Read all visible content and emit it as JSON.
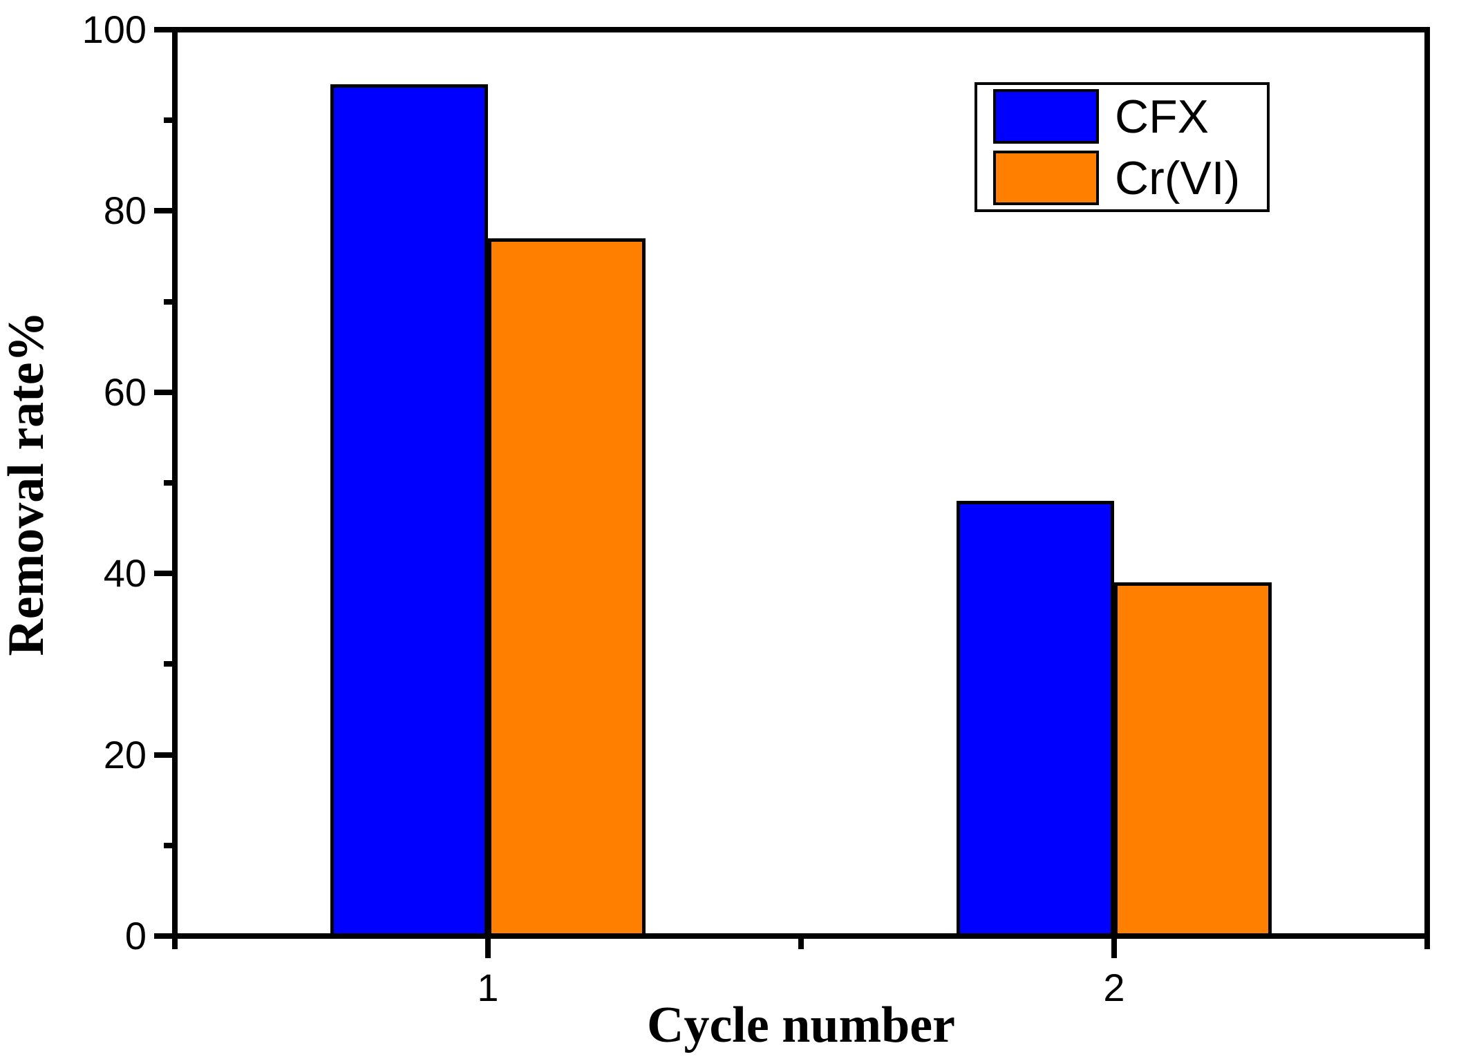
{
  "figure": {
    "background": "#FFFFFF",
    "axis_color": "#000000"
  },
  "chart_data": {
    "type": "bar",
    "categories": [
      "1",
      "2"
    ],
    "series": [
      {
        "name": "CFX",
        "color": "#0000FF",
        "values": [
          94,
          48
        ]
      },
      {
        "name": "Cr(VI)",
        "color": "#FF8000",
        "values": [
          77,
          39
        ]
      }
    ],
    "title": "",
    "xlabel": "Cycle number",
    "ylabel": "Removal rate%",
    "ylim": [
      0,
      100
    ],
    "y_major_ticks": [
      0,
      20,
      40,
      60,
      80,
      100
    ],
    "y_minor_ticks": [
      10,
      30,
      50,
      70,
      90
    ],
    "bar_edge_color": "#000000",
    "legend_position": "top-right",
    "grid": false
  }
}
